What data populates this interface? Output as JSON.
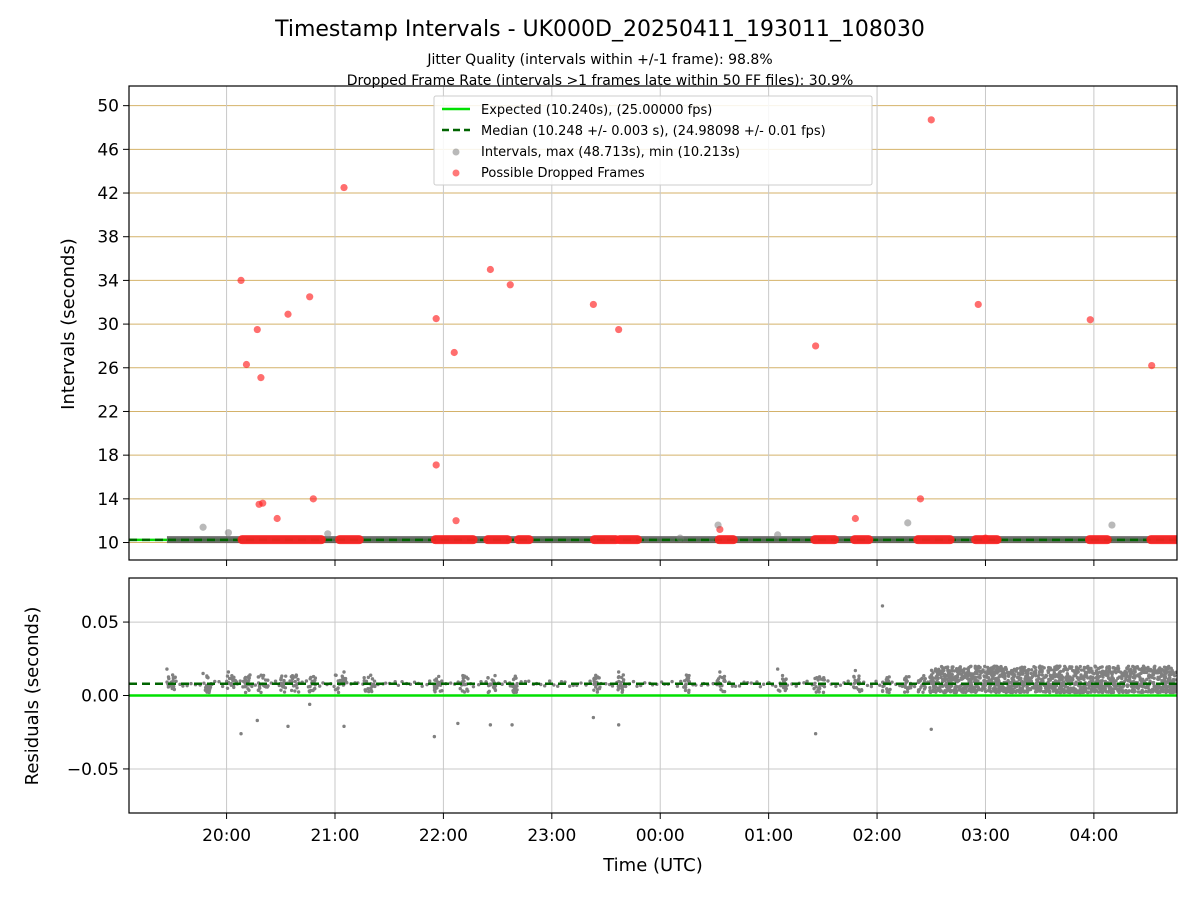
{
  "chart_data": [
    {
      "type": "scatter",
      "title": "Timestamp Intervals - UK000D_20250411_193011_108030",
      "subtitle_lines": [
        "Jitter Quality (intervals within +/-1 frame): 98.8%",
        "Dropped Frame Rate (intervals >1 frames late within 50 FF files): 30.9%"
      ],
      "xlabel": "",
      "ylabel": "Intervals (seconds)",
      "xlim": [
        "19:06",
        "04:46"
      ],
      "ylim": [
        8.4,
        51.8
      ],
      "yticks": [
        10,
        14,
        18,
        22,
        26,
        30,
        34,
        38,
        42,
        46,
        50
      ],
      "xticks": [
        "20:00",
        "21:00",
        "22:00",
        "23:00",
        "00:00",
        "01:00",
        "02:00",
        "03:00",
        "04:00"
      ],
      "grid": true,
      "legend_position": "top-center",
      "legend": [
        "Expected (10.240s), (25.00000 fps)",
        "Median (10.248 +/- 0.003 s), (24.98098 +/- 0.01 fps)",
        "Intervals, max (48.713s), min (10.213s)",
        "Possible Dropped Frames"
      ],
      "expected_interval": 10.24,
      "median_interval": 10.248,
      "colors": {
        "expected": "#00e000",
        "median": "#006400",
        "intervals": "#808080",
        "dropped": "#ff2020",
        "grid_y": "#d4b26a",
        "grid_x": "#c8c8c8"
      },
      "dropped_bands": [
        [
          "20:08",
          "20:53"
        ],
        [
          "21:02",
          "21:14"
        ],
        [
          "21:55",
          "22:17"
        ],
        [
          "22:24",
          "22:36"
        ],
        [
          "22:41",
          "22:48"
        ],
        [
          "23:23",
          "23:36"
        ],
        [
          "23:37",
          "23:48"
        ],
        [
          "00:32",
          "00:41"
        ],
        [
          "01:25",
          "01:37"
        ],
        [
          "01:47",
          "01:56"
        ],
        [
          "02:22",
          "02:41"
        ],
        [
          "02:54",
          "03:07"
        ],
        [
          "03:57",
          "04:08"
        ],
        [
          "04:31",
          "04:46"
        ]
      ],
      "series": [
        {
          "name": "Possible Dropped Frames",
          "points": [
            [
              "20:08",
              34.0
            ],
            [
              "20:11",
              26.3
            ],
            [
              "20:17",
              29.5
            ],
            [
              "20:18",
              13.5
            ],
            [
              "20:19",
              25.1
            ],
            [
              "20:20",
              13.6
            ],
            [
              "20:28",
              12.2
            ],
            [
              "20:34",
              30.9
            ],
            [
              "20:46",
              32.5
            ],
            [
              "20:48",
              14.0
            ],
            [
              "21:05",
              42.5
            ],
            [
              "21:56",
              30.5
            ],
            [
              "21:56",
              17.1
            ],
            [
              "22:06",
              27.4
            ],
            [
              "22:07",
              12.0
            ],
            [
              "22:26",
              35.0
            ],
            [
              "22:37",
              33.6
            ],
            [
              "23:23",
              31.8
            ],
            [
              "23:37",
              29.5
            ],
            [
              "00:33",
              11.2
            ],
            [
              "01:26",
              28.0
            ],
            [
              "01:48",
              12.2
            ],
            [
              "02:24",
              14.0
            ],
            [
              "02:30",
              48.7
            ],
            [
              "02:56",
              31.8
            ],
            [
              "03:00",
              10.4
            ],
            [
              "03:58",
              30.4
            ],
            [
              "04:32",
              26.2
            ]
          ]
        },
        {
          "name": "Intervals",
          "points": [
            [
              "19:47",
              11.4
            ],
            [
              "20:01",
              10.9
            ],
            [
              "20:56",
              10.8
            ],
            [
              "00:11",
              10.4
            ],
            [
              "00:32",
              11.6
            ],
            [
              "01:05",
              10.7
            ],
            [
              "02:17",
              11.8
            ],
            [
              "04:10",
              11.6
            ]
          ]
        }
      ]
    },
    {
      "type": "scatter",
      "xlabel": "Time (UTC)",
      "ylabel": "Residuals (seconds)",
      "xlim": [
        "19:06",
        "04:46"
      ],
      "ylim": [
        -0.08,
        0.08
      ],
      "yticks": [
        0.05,
        0.0,
        -0.05
      ],
      "ytick_labels": [
        "0.05",
        "0.00",
        "−0.05"
      ],
      "xticks": [
        "20:00",
        "21:00",
        "22:00",
        "23:00",
        "00:00",
        "01:00",
        "02:00",
        "03:00",
        "04:00"
      ],
      "grid": true,
      "expected_residual": 0.0,
      "median_residual": 0.008,
      "residual_clusters": [
        [
          "19:27",
          "19:32"
        ],
        [
          "19:47",
          "19:52"
        ],
        [
          "20:00",
          "20:06"
        ],
        [
          "20:09",
          "20:14"
        ],
        [
          "20:17",
          "20:23"
        ],
        [
          "20:29",
          "20:33"
        ],
        [
          "20:35",
          "20:40"
        ],
        [
          "20:45",
          "20:50"
        ],
        [
          "21:00",
          "21:06"
        ],
        [
          "21:16",
          "21:22"
        ],
        [
          "21:55",
          "22:00"
        ],
        [
          "22:09",
          "22:14"
        ],
        [
          "22:24",
          "22:29"
        ],
        [
          "22:37",
          "22:41"
        ],
        [
          "23:23",
          "23:27"
        ],
        [
          "23:36",
          "23:40"
        ],
        [
          "00:13",
          "00:16"
        ],
        [
          "00:31",
          "00:36"
        ],
        [
          "01:05",
          "01:10"
        ],
        [
          "01:25",
          "01:31"
        ],
        [
          "01:47",
          "01:52"
        ],
        [
          "02:03",
          "02:08"
        ],
        [
          "02:15",
          "02:19"
        ],
        [
          "02:22",
          "02:27"
        ]
      ],
      "dense_region": [
        "02:29",
        "04:46"
      ],
      "series": [
        {
          "name": "Residuals",
          "outliers": [
            [
              "20:08",
              -0.026
            ],
            [
              "20:17",
              -0.017
            ],
            [
              "20:34",
              -0.021
            ],
            [
              "20:46",
              -0.006
            ],
            [
              "21:05",
              -0.021
            ],
            [
              "21:55",
              -0.028
            ],
            [
              "22:08",
              -0.019
            ],
            [
              "22:26",
              -0.02
            ],
            [
              "22:38",
              -0.02
            ],
            [
              "23:23",
              -0.015
            ],
            [
              "23:37",
              -0.02
            ],
            [
              "01:26",
              -0.026
            ],
            [
              "02:03",
              0.061
            ],
            [
              "02:30",
              -0.023
            ],
            [
              "19:27",
              0.018
            ],
            [
              "19:47",
              0.015
            ],
            [
              "20:01",
              0.016
            ],
            [
              "21:05",
              0.016
            ],
            [
              "01:05",
              0.018
            ],
            [
              "01:48",
              0.017
            ],
            [
              "00:33",
              0.016
            ],
            [
              "23:37",
              0.016
            ]
          ]
        }
      ]
    }
  ]
}
